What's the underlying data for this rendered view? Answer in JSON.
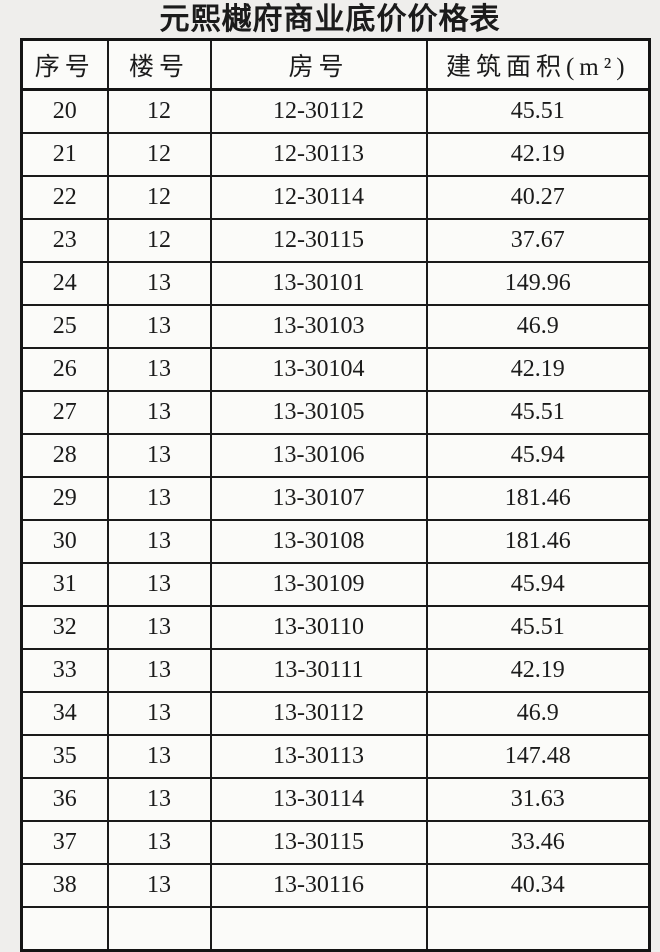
{
  "page": {
    "title": "元熙樾府商业底价价格表"
  },
  "table": {
    "columns": [
      "序号",
      "楼号",
      "房号",
      "建筑面积(m²)"
    ],
    "rows": [
      {
        "seq": "20",
        "building": "12",
        "room": "12-30112",
        "area": "45.51"
      },
      {
        "seq": "21",
        "building": "12",
        "room": "12-30113",
        "area": "42.19"
      },
      {
        "seq": "22",
        "building": "12",
        "room": "12-30114",
        "area": "40.27"
      },
      {
        "seq": "23",
        "building": "12",
        "room": "12-30115",
        "area": "37.67"
      },
      {
        "seq": "24",
        "building": "13",
        "room": "13-30101",
        "area": "149.96"
      },
      {
        "seq": "25",
        "building": "13",
        "room": "13-30103",
        "area": "46.9"
      },
      {
        "seq": "26",
        "building": "13",
        "room": "13-30104",
        "area": "42.19"
      },
      {
        "seq": "27",
        "building": "13",
        "room": "13-30105",
        "area": "45.51"
      },
      {
        "seq": "28",
        "building": "13",
        "room": "13-30106",
        "area": "45.94"
      },
      {
        "seq": "29",
        "building": "13",
        "room": "13-30107",
        "area": "181.46"
      },
      {
        "seq": "30",
        "building": "13",
        "room": "13-30108",
        "area": "181.46"
      },
      {
        "seq": "31",
        "building": "13",
        "room": "13-30109",
        "area": "45.94"
      },
      {
        "seq": "32",
        "building": "13",
        "room": "13-30110",
        "area": "45.51"
      },
      {
        "seq": "33",
        "building": "13",
        "room": "13-30111",
        "area": "42.19"
      },
      {
        "seq": "34",
        "building": "13",
        "room": "13-30112",
        "area": "46.9"
      },
      {
        "seq": "35",
        "building": "13",
        "room": "13-30113",
        "area": "147.48"
      },
      {
        "seq": "36",
        "building": "13",
        "room": "13-30114",
        "area": "31.63"
      },
      {
        "seq": "37",
        "building": "13",
        "room": "13-30115",
        "area": "33.46"
      },
      {
        "seq": "38",
        "building": "13",
        "room": "13-30116",
        "area": "40.34"
      }
    ]
  },
  "colors": {
    "page_background": "#efeeec",
    "cell_background": "#fbfbf9",
    "border": "#1a1a1a",
    "text": "#1b1b1b"
  }
}
